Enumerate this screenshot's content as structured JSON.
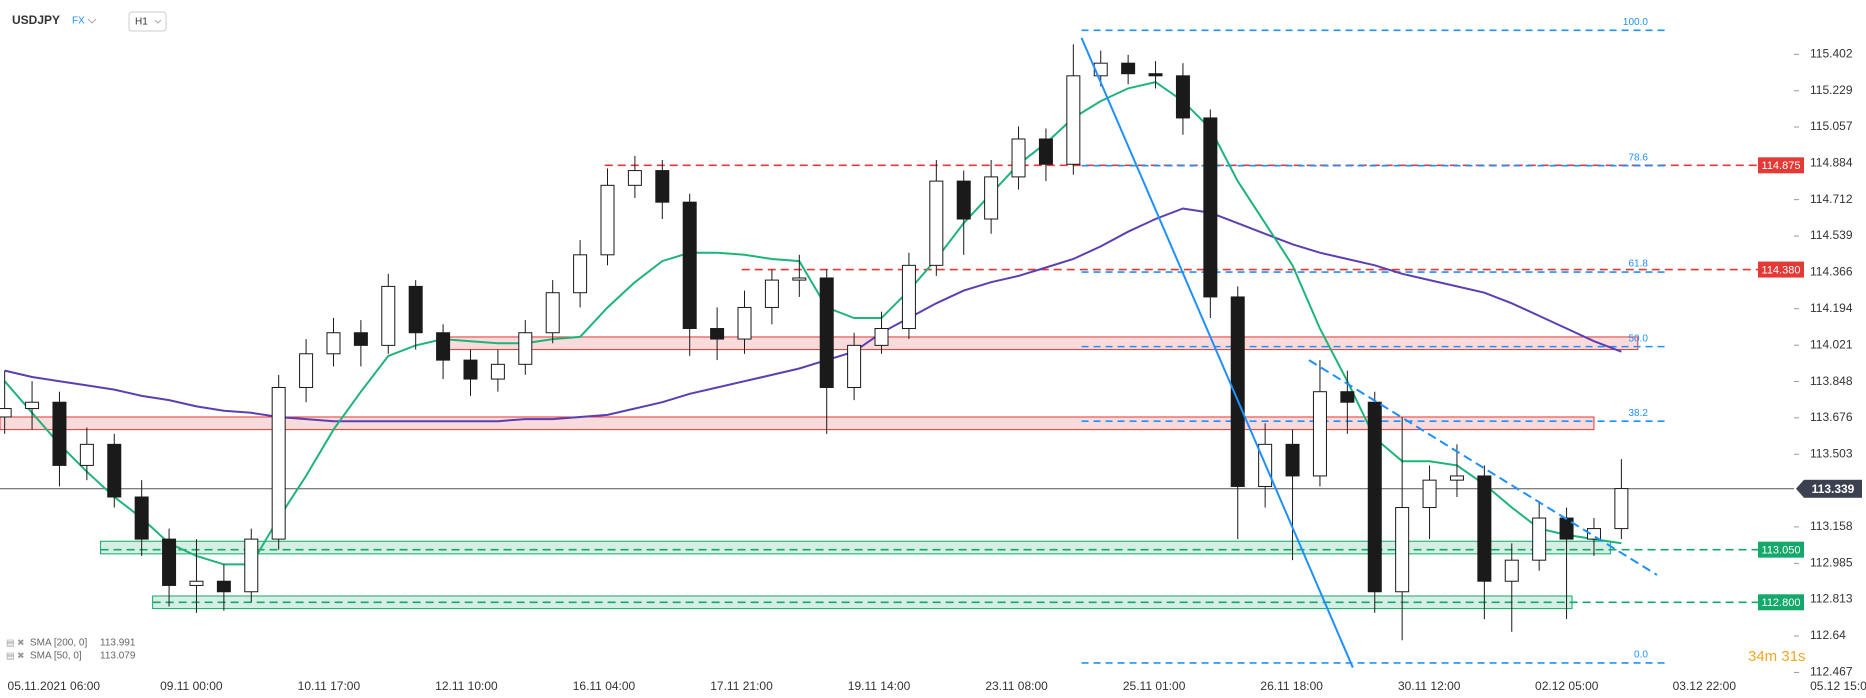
{
  "header": {
    "symbol": "USDJPY",
    "market": "FX",
    "interval": "H1"
  },
  "chart_data": {
    "type": "candlestick",
    "open": [
      113.68,
      113.72,
      113.75,
      113.45,
      113.55,
      113.3,
      113.1,
      112.88,
      112.9,
      112.85,
      113.1,
      113.82,
      113.98,
      114.08,
      114.02,
      114.3,
      114.08,
      113.95,
      113.86,
      113.93,
      114.08,
      114.27,
      114.45,
      114.78,
      114.85,
      114.7,
      114.1,
      114.05,
      114.2,
      114.33,
      114.34,
      113.82,
      114.02,
      114.1,
      114.4,
      114.8,
      114.62,
      114.82,
      115.0,
      114.88,
      115.3,
      115.36,
      115.31,
      115.3,
      115.1,
      114.25,
      113.35,
      113.55,
      113.4,
      113.8,
      113.75,
      112.85,
      113.25,
      113.38,
      113.4,
      112.9,
      113.0,
      113.2,
      113.1,
      113.15
    ],
    "high": [
      113.9,
      113.85,
      113.8,
      113.63,
      113.6,
      113.38,
      113.15,
      113.1,
      112.98,
      113.15,
      113.88,
      114.05,
      114.15,
      114.14,
      114.36,
      114.33,
      114.12,
      114.0,
      114.0,
      114.14,
      114.33,
      114.52,
      114.86,
      114.92,
      114.9,
      114.74,
      114.2,
      114.28,
      114.38,
      114.45,
      114.38,
      114.08,
      114.18,
      114.46,
      114.9,
      114.85,
      114.9,
      115.06,
      115.05,
      115.45,
      115.42,
      115.4,
      115.37,
      115.36,
      115.14,
      114.3,
      113.65,
      113.62,
      113.95,
      113.9,
      113.8,
      113.68,
      113.45,
      113.55,
      113.45,
      113.08,
      113.28,
      113.25,
      113.2,
      113.48
    ],
    "low": [
      113.6,
      113.62,
      113.35,
      113.38,
      113.25,
      113.02,
      112.78,
      112.75,
      112.76,
      112.8,
      113.05,
      113.75,
      113.92,
      113.92,
      113.98,
      114.0,
      113.86,
      113.78,
      113.8,
      113.88,
      114.03,
      114.2,
      114.4,
      114.72,
      114.62,
      113.97,
      113.95,
      113.98,
      114.12,
      114.25,
      113.6,
      113.76,
      113.98,
      114.05,
      114.35,
      114.45,
      114.55,
      114.76,
      114.8,
      114.83,
      115.25,
      115.26,
      115.24,
      115.02,
      114.15,
      113.1,
      113.25,
      113.0,
      113.35,
      113.6,
      112.75,
      112.62,
      113.1,
      113.3,
      112.72,
      112.66,
      112.95,
      112.72,
      113.02,
      113.1
    ],
    "close": [
      113.72,
      113.75,
      113.45,
      113.55,
      113.3,
      113.1,
      112.88,
      112.9,
      112.85,
      113.1,
      113.82,
      113.98,
      114.08,
      114.02,
      114.3,
      114.08,
      113.95,
      113.86,
      113.93,
      114.08,
      114.27,
      114.45,
      114.78,
      114.85,
      114.7,
      114.1,
      114.05,
      114.2,
      114.33,
      114.34,
      113.82,
      114.02,
      114.1,
      114.4,
      114.8,
      114.62,
      114.82,
      115.0,
      114.88,
      115.3,
      115.36,
      115.31,
      115.3,
      115.1,
      114.25,
      113.35,
      113.55,
      113.4,
      113.8,
      113.75,
      112.85,
      113.25,
      113.38,
      113.4,
      112.9,
      113.0,
      113.2,
      113.1,
      113.15,
      113.34
    ],
    "up_color": "#ffffff",
    "down_color": "#1a1a1a",
    "wick_color": "#1a1a1a",
    "xlim": [
      -0.17,
      65.3
    ],
    "ylim": [
      112.45,
      115.66
    ],
    "yticks": [
      115.402,
      115.229,
      115.057,
      114.884,
      114.712,
      114.539,
      114.366,
      114.194,
      114.021,
      113.848,
      113.676,
      113.503,
      113.158,
      112.985,
      112.813,
      112.64,
      112.467
    ],
    "time_labels": [
      "05.11.2021 06:00",
      "09.11 00:00",
      "10.11 17:00",
      "12.11 10:00",
      "16.11 04:00",
      "17.11 21:00",
      "19.11 14:00",
      "23.11 08:00",
      "25.11 01:00",
      "26.11 18:00",
      "30.11 12:00",
      "02.12 05:00",
      "03.12 22:00",
      "05.12 15:00"
    ],
    "series": [
      {
        "name": "SMA [200, 0]",
        "color": "#5b3fb3",
        "last": 113.991,
        "values": [
          113.9,
          113.87,
          113.85,
          113.83,
          113.81,
          113.78,
          113.76,
          113.73,
          113.71,
          113.7,
          113.68,
          113.67,
          113.66,
          113.66,
          113.66,
          113.66,
          113.66,
          113.66,
          113.66,
          113.67,
          113.67,
          113.68,
          113.69,
          113.72,
          113.75,
          113.79,
          113.82,
          113.85,
          113.88,
          113.91,
          113.95,
          113.99,
          114.08,
          114.15,
          114.22,
          114.28,
          114.32,
          114.35,
          114.39,
          114.43,
          114.49,
          114.56,
          114.62,
          114.67,
          114.65,
          114.6,
          114.55,
          114.5,
          114.46,
          114.43,
          114.4,
          114.36,
          114.33,
          114.3,
          114.27,
          114.22,
          114.16,
          114.1,
          114.04,
          113.99
        ]
      },
      {
        "name": "SMA [50, 0]",
        "color": "#1db47a",
        "last": 113.079,
        "values": [
          113.85,
          113.7,
          113.55,
          113.42,
          113.3,
          113.2,
          113.08,
          113.02,
          112.98,
          112.98,
          113.2,
          113.4,
          113.62,
          113.8,
          113.97,
          114.02,
          114.05,
          114.04,
          114.03,
          114.03,
          114.05,
          114.06,
          114.2,
          114.32,
          114.42,
          114.46,
          114.46,
          114.45,
          114.43,
          114.42,
          114.2,
          114.15,
          114.15,
          114.28,
          114.43,
          114.6,
          114.74,
          114.88,
          114.98,
          115.1,
          115.18,
          115.24,
          115.27,
          115.18,
          115.05,
          114.8,
          114.6,
          114.4,
          114.1,
          113.85,
          113.58,
          113.47,
          113.47,
          113.45,
          113.36,
          113.25,
          113.15,
          113.12,
          113.1,
          113.08
        ]
      }
    ],
    "levels": [
      {
        "value": 114.875,
        "start": 21.9,
        "color": "#e53935"
      },
      {
        "value": {
          "value": 114.38,
          "label": "114.380"
        },
        "start": 26.9,
        "color": "#e53935"
      },
      {
        "value": {
          "value": 113.05,
          "label": "113.050"
        },
        "start": 3.5,
        "color": "#14a86b"
      },
      {
        "value": {
          "value": 112.8,
          "label": "112.800"
        },
        "start": 5.4,
        "color": "#14a86b"
      }
    ],
    "zones": [
      {
        "from": 16.1,
        "to": 59.6,
        "low": 114.0,
        "high": 114.06,
        "color": "#e53935"
      },
      {
        "from": -0.17,
        "to": 58.0,
        "low": 113.62,
        "high": 113.68,
        "color": "#e53935"
      },
      {
        "from": 3.5,
        "to": 58.6,
        "low": 113.03,
        "high": 113.09,
        "color": "#14a86b"
      },
      {
        "from": 5.4,
        "to": 57.2,
        "low": 112.77,
        "high": 112.83,
        "color": "#14a86b"
      }
    ],
    "fibonacci": {
      "color": "#1e90ff",
      "from": 39.3,
      "to": 60.7,
      "levels": [
        {
          "label": "100.0",
          "value": 115.516
        },
        {
          "label": "78.6",
          "value": 114.873
        },
        {
          "label": "61.8",
          "value": 114.368
        },
        {
          "label": "50.0",
          "value": 114.014
        },
        {
          "label": "38.2",
          "value": 113.66
        },
        {
          "label": "0.0",
          "value": 112.512
        }
      ]
    },
    "trendlines": [
      {
        "x": [
          39.3,
          49.2
        ],
        "y": [
          115.48,
          112.49
        ],
        "dashed": false,
        "color": "#1e90ff"
      },
      {
        "x": [
          47.6,
          60.3
        ],
        "y": [
          113.95,
          112.93
        ],
        "dashed": true,
        "color": "#1e90ff"
      }
    ],
    "current_price": 113.339,
    "timer": "34m 31s"
  }
}
